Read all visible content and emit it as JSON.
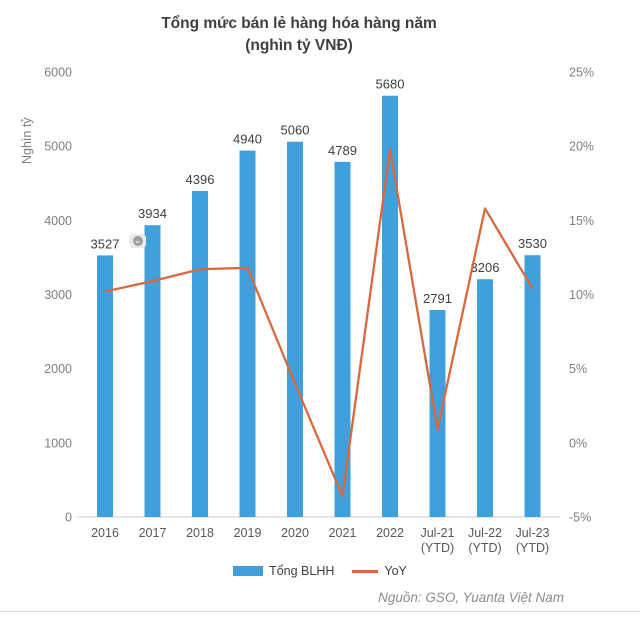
{
  "title": {
    "line1": "Tổng mức bán lẻ hàng hóa hàng năm",
    "line2": "(nghìn tỷ VNĐ)"
  },
  "chart_data": {
    "type": "bar",
    "combo": "bar+line",
    "categories": [
      "2016",
      "2017",
      "2018",
      "2019",
      "2020",
      "2021",
      "2022",
      "Jul-21\n(YTD)",
      "Jul-22\n(YTD)",
      "Jul-23\n(YTD)"
    ],
    "series": [
      {
        "name": "Tổng BLHH",
        "type": "bar",
        "axis": "left",
        "color": "#3FA0DC",
        "values": [
          3527,
          3934,
          4396,
          4940,
          5060,
          4789,
          5680,
          2791,
          3206,
          3530
        ]
      },
      {
        "name": "YoY",
        "type": "line",
        "axis": "right",
        "color": "#D8693F",
        "unit": "%",
        "values": [
          10.2,
          10.9,
          11.7,
          11.8,
          4.0,
          -3.6,
          19.8,
          0.9,
          15.8,
          10.4
        ]
      }
    ],
    "left_axis": {
      "title": "Nghìn tỷ",
      "min": 0,
      "max": 6000,
      "ticks": [
        6000,
        5000,
        4000,
        3000,
        2000,
        1000,
        0
      ]
    },
    "right_axis": {
      "min": -5,
      "max": 25,
      "suffix": "%",
      "ticks": [
        25,
        20,
        15,
        10,
        5,
        0,
        -5
      ]
    },
    "grid": false,
    "data_labels": true,
    "legend_position": "bottom"
  },
  "legend": {
    "items": [
      {
        "label": "Tổng BLHH",
        "color": "#3FA0DC",
        "marker": "bar"
      },
      {
        "label": "YoY",
        "color": "#D8693F",
        "marker": "line"
      }
    ]
  },
  "annotation_badge": {
    "attached_to_value": "3527",
    "icon": "chevron-down-icon",
    "glyph": "⌄"
  },
  "source_note": "Nguồn: GSO, Yuanta Việt Nam",
  "colors": {
    "bar": "#3FA0DC",
    "line": "#D8693F",
    "title_text": "#3F3F3F",
    "axis_text": "#7F7F7F",
    "category_text": "#595959",
    "value_label_text": "#404040",
    "source_text": "#8C8C8C",
    "baseline": "#D6D6D6"
  }
}
